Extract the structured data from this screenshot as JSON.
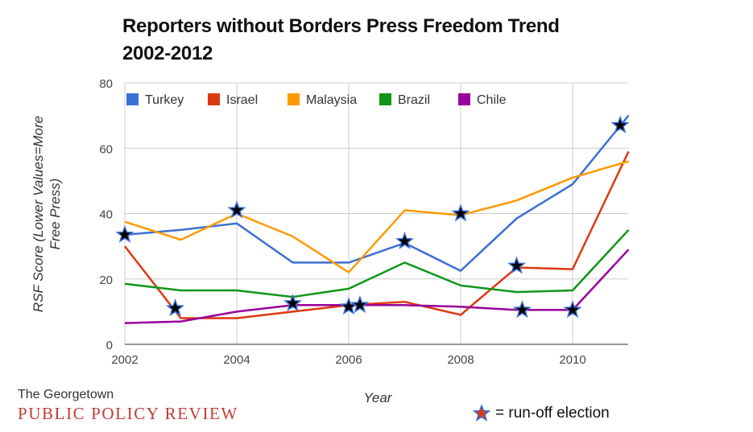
{
  "title_line1": "Reporters without Borders Press Freedom Trend",
  "title_line2": "2002-2012",
  "logo": {
    "line1": "The Georgetown",
    "line2": "PUBLIC POLICY REVIEW"
  },
  "runoff_note": {
    "text": "= run-off election",
    "icon": "star-icon"
  },
  "colors": {
    "turkey": "#3b6fd4",
    "israel": "#dc3912",
    "malaysia": "#ff9900",
    "brazil": "#109618",
    "chile": "#990099",
    "star_fill": "#000000",
    "star_outline": "#3b6fd4",
    "star_note_fill": "#dc3912"
  },
  "chart_data": {
    "type": "line",
    "xlabel": "Year",
    "ylabel_line1": "RSF Score (Lower Values=More",
    "ylabel_line2": "Free Press)",
    "xlim": [
      2002,
      2011
    ],
    "ylim": [
      0,
      80
    ],
    "x_ticks": [
      2002,
      2004,
      2006,
      2008,
      2010
    ],
    "y_ticks": [
      0,
      20,
      40,
      60,
      80
    ],
    "grid": true,
    "legend_position": "top-left inside",
    "x": [
      2002,
      2003,
      2004,
      2005,
      2006,
      2007,
      2008,
      2009,
      2010,
      2011
    ],
    "series": [
      {
        "name": "Turkey",
        "color": "#3b6fd4",
        "values": [
          33.5,
          35,
          37,
          25,
          25,
          31,
          22.5,
          38.5,
          49,
          70
        ]
      },
      {
        "name": "Israel",
        "color": "#dc3912",
        "values": [
          30,
          8,
          8,
          10,
          12,
          13,
          9,
          23.5,
          23,
          59
        ]
      },
      {
        "name": "Malaysia",
        "color": "#ff9900",
        "values": [
          37.5,
          32,
          40,
          33,
          22,
          41,
          39.5,
          44,
          51,
          56
        ]
      },
      {
        "name": "Brazil",
        "color": "#109618",
        "values": [
          18.5,
          16.5,
          16.5,
          14.5,
          17,
          25,
          18,
          16,
          16.5,
          35
        ]
      },
      {
        "name": "Chile",
        "color": "#990099",
        "values": [
          6.5,
          7,
          10,
          12,
          12,
          12,
          11.5,
          10.5,
          10.5,
          29
        ]
      }
    ],
    "runoff_elections": [
      {
        "x": 2002,
        "y": 33.5
      },
      {
        "x": 2002.9,
        "y": 11
      },
      {
        "x": 2004,
        "y": 41
      },
      {
        "x": 2005,
        "y": 12.5
      },
      {
        "x": 2006,
        "y": 11.5
      },
      {
        "x": 2006.2,
        "y": 12
      },
      {
        "x": 2007,
        "y": 31.5
      },
      {
        "x": 2008,
        "y": 40
      },
      {
        "x": 2009,
        "y": 24
      },
      {
        "x": 2009.1,
        "y": 10.5
      },
      {
        "x": 2010,
        "y": 10.5
      },
      {
        "x": 2010.85,
        "y": 67
      }
    ]
  }
}
